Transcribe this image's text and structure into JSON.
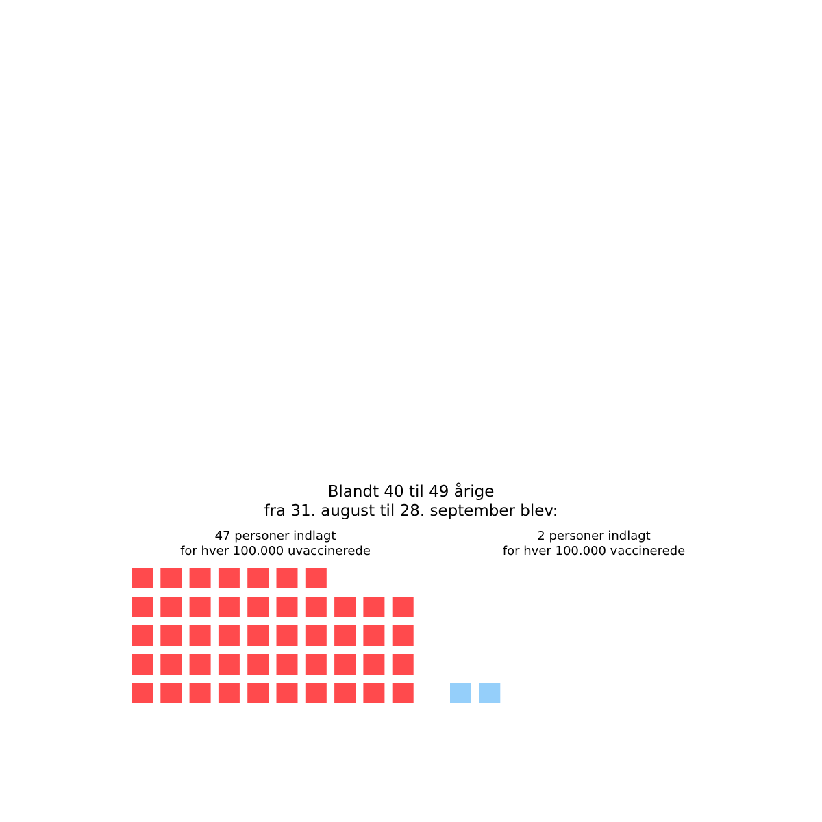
{
  "chart_data": {
    "type": "waffle",
    "title_lines": [
      "Blandt 40 til 49 årige",
      "fra 31. august til 28. september blev:"
    ],
    "columns_per_row": 10,
    "groups": [
      {
        "label_lines": [
          "47 personer indlagt",
          "for hver 100.000 uvaccinerede"
        ],
        "value": 47,
        "color": "#ff4a4d"
      },
      {
        "label_lines": [
          "2 personer indlagt",
          "for hver 100.000 vaccinerede"
        ],
        "value": 2,
        "color": "#95cffa"
      }
    ]
  }
}
